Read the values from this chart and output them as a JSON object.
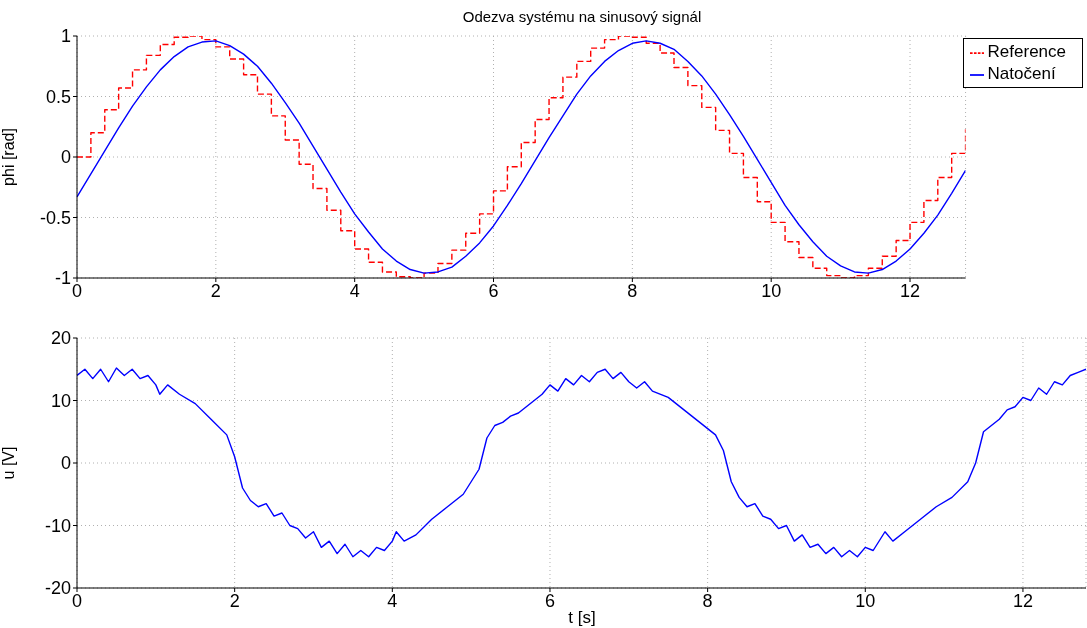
{
  "chart_data": [
    {
      "type": "line",
      "title": "Odezva systému na sinusový signál",
      "ylabel": "phi [rad]",
      "xlim": [
        0,
        12.8
      ],
      "xticks": [
        0,
        2,
        4,
        6,
        8,
        10,
        12
      ],
      "ylim": [
        -1,
        1
      ],
      "yticks": [
        -1,
        -0.5,
        0,
        0.5,
        1
      ],
      "grid": true,
      "legend": "top right",
      "series": [
        {
          "name": "Reference",
          "type": "step",
          "line_style": "dashed",
          "color": "#ff0000",
          "x": [
            0,
            0.2,
            0.4,
            0.6,
            0.8,
            1.0,
            1.2,
            1.4,
            1.6,
            1.8,
            2.0,
            2.2,
            2.4,
            2.6,
            2.8,
            3.0,
            3.2,
            3.4,
            3.6,
            3.8,
            4.0,
            4.2,
            4.4,
            4.6,
            4.8,
            5.0,
            5.2,
            5.4,
            5.6,
            5.8,
            6.0,
            6.2,
            6.4,
            6.6,
            6.8,
            7.0,
            7.2,
            7.4,
            7.6,
            7.8,
            8.0,
            8.2,
            8.4,
            8.6,
            8.8,
            9.0,
            9.2,
            9.4,
            9.6,
            9.8,
            10.0,
            10.2,
            10.4,
            10.6,
            10.8,
            11.0,
            11.2,
            11.4,
            11.6,
            11.8,
            12.0,
            12.2,
            12.4,
            12.6,
            12.8
          ],
          "values": [
            0,
            0.2,
            0.39,
            0.57,
            0.72,
            0.84,
            0.93,
            0.99,
            1,
            0.97,
            0.91,
            0.81,
            0.68,
            0.52,
            0.34,
            0.14,
            -0.06,
            -0.26,
            -0.44,
            -0.61,
            -0.76,
            -0.87,
            -0.95,
            -0.99,
            -1,
            -0.96,
            -0.88,
            -0.77,
            -0.63,
            -0.47,
            -0.28,
            -0.08,
            0.12,
            0.31,
            0.49,
            0.66,
            0.79,
            0.9,
            0.97,
            1,
            0.99,
            0.94,
            0.86,
            0.74,
            0.59,
            0.41,
            0.22,
            0.03,
            -0.17,
            -0.37,
            -0.54,
            -0.7,
            -0.83,
            -0.92,
            -0.98,
            -1,
            -0.98,
            -0.92,
            -0.82,
            -0.69,
            -0.54,
            -0.36,
            -0.17,
            0.03,
            0.23
          ]
        },
        {
          "name": "Natočení",
          "type": "line",
          "line_style": "solid",
          "color": "#0000ff",
          "x": [
            0,
            0.2,
            0.4,
            0.6,
            0.8,
            1.0,
            1.2,
            1.4,
            1.6,
            1.8,
            2.0,
            2.2,
            2.4,
            2.6,
            2.8,
            3.0,
            3.2,
            3.4,
            3.6,
            3.8,
            4.0,
            4.2,
            4.4,
            4.6,
            4.8,
            5.0,
            5.2,
            5.4,
            5.6,
            5.8,
            6.0,
            6.2,
            6.4,
            6.6,
            6.8,
            7.0,
            7.2,
            7.4,
            7.6,
            7.8,
            8.0,
            8.2,
            8.4,
            8.6,
            8.8,
            9.0,
            9.2,
            9.4,
            9.6,
            9.8,
            10.0,
            10.2,
            10.4,
            10.6,
            10.8,
            11.0,
            11.2,
            11.4,
            11.6,
            11.8,
            12.0,
            12.2,
            12.4,
            12.6,
            12.8
          ],
          "values": [
            -0.33,
            -0.14,
            0.05,
            0.24,
            0.42,
            0.58,
            0.72,
            0.83,
            0.91,
            0.95,
            0.96,
            0.92,
            0.85,
            0.75,
            0.61,
            0.45,
            0.28,
            0.09,
            -0.1,
            -0.29,
            -0.47,
            -0.62,
            -0.76,
            -0.86,
            -0.93,
            -0.96,
            -0.95,
            -0.91,
            -0.82,
            -0.71,
            -0.57,
            -0.4,
            -0.22,
            -0.03,
            0.16,
            0.34,
            0.52,
            0.67,
            0.79,
            0.88,
            0.94,
            0.96,
            0.94,
            0.89,
            0.79,
            0.67,
            0.52,
            0.35,
            0.17,
            -0.02,
            -0.21,
            -0.4,
            -0.56,
            -0.7,
            -0.82,
            -0.9,
            -0.95,
            -0.96,
            -0.93,
            -0.86,
            -0.76,
            -0.63,
            -0.48,
            -0.3,
            -0.11
          ]
        }
      ]
    },
    {
      "type": "line",
      "xlabel": "t [s]",
      "ylabel": "u [V]",
      "xlim": [
        0,
        12.8
      ],
      "xticks": [
        0,
        2,
        4,
        6,
        8,
        10,
        12
      ],
      "ylim": [
        -20,
        20
      ],
      "yticks": [
        -20,
        -10,
        0,
        10,
        20
      ],
      "grid": true,
      "series": [
        {
          "color": "#0000ff",
          "line_style": "solid",
          "x": [
            0,
            0.1,
            0.2,
            0.3,
            0.4,
            0.5,
            0.6,
            0.7,
            0.8,
            0.9,
            1.0,
            1.05,
            1.15,
            1.3,
            1.5,
            1.7,
            1.9,
            2.0,
            2.1,
            2.2,
            2.3,
            2.4,
            2.5,
            2.6,
            2.7,
            2.8,
            2.9,
            3.0,
            3.1,
            3.2,
            3.3,
            3.4,
            3.5,
            3.6,
            3.7,
            3.8,
            3.9,
            4.0,
            4.05,
            4.15,
            4.3,
            4.5,
            4.7,
            4.9,
            5.0,
            5.1,
            5.2,
            5.3,
            5.4,
            5.5,
            5.6,
            5.7,
            5.8,
            5.9,
            6.0,
            6.1,
            6.2,
            6.3,
            6.4,
            6.5,
            6.6,
            6.7,
            6.8,
            6.9,
            7.0,
            7.1,
            7.2,
            7.3,
            7.5,
            7.7,
            7.9,
            8.1,
            8.2,
            8.3,
            8.4,
            8.5,
            8.6,
            8.7,
            8.8,
            8.9,
            9.0,
            9.1,
            9.2,
            9.3,
            9.4,
            9.5,
            9.6,
            9.7,
            9.8,
            9.9,
            10.0,
            10.1,
            10.2,
            10.25,
            10.35,
            10.5,
            10.7,
            10.9,
            11.1,
            11.3,
            11.4,
            11.5,
            11.6,
            11.7,
            11.8,
            11.9,
            12.0,
            12.1,
            12.2,
            12.3,
            12.4,
            12.5,
            12.6,
            12.7,
            12.8
          ],
          "values": [
            14,
            15,
            13.5,
            15,
            13,
            15.2,
            14,
            15,
            13.5,
            14,
            12.5,
            11,
            12.5,
            11,
            9.5,
            7,
            4.5,
            1,
            -4,
            -6,
            -7,
            -6.5,
            -8.5,
            -8,
            -10,
            -10.5,
            -12,
            -11,
            -13.5,
            -12.5,
            -14.5,
            -13,
            -15,
            -14,
            -15,
            -13.5,
            -14,
            -12.5,
            -11,
            -12.5,
            -11.5,
            -9,
            -7,
            -5,
            -3,
            -1,
            4,
            6,
            6.5,
            7.5,
            8,
            9,
            10,
            11,
            12.5,
            11.5,
            13.5,
            12.5,
            14,
            13,
            14.5,
            15,
            13.5,
            14.5,
            13,
            12,
            13,
            11.5,
            10.5,
            8.5,
            6.5,
            4.5,
            2,
            -3,
            -5.5,
            -7,
            -6.5,
            -8.5,
            -9,
            -10.5,
            -10,
            -12.5,
            -11.5,
            -13.5,
            -13,
            -14.5,
            -13.5,
            -15,
            -14,
            -15,
            -13.5,
            -14,
            -12,
            -11,
            -12.5,
            -11,
            -9,
            -7,
            -5.5,
            -3,
            0,
            5,
            6,
            7,
            8.5,
            9,
            10.5,
            10,
            12,
            11,
            13,
            12.5,
            14,
            14.5,
            15
          ]
        }
      ]
    }
  ]
}
